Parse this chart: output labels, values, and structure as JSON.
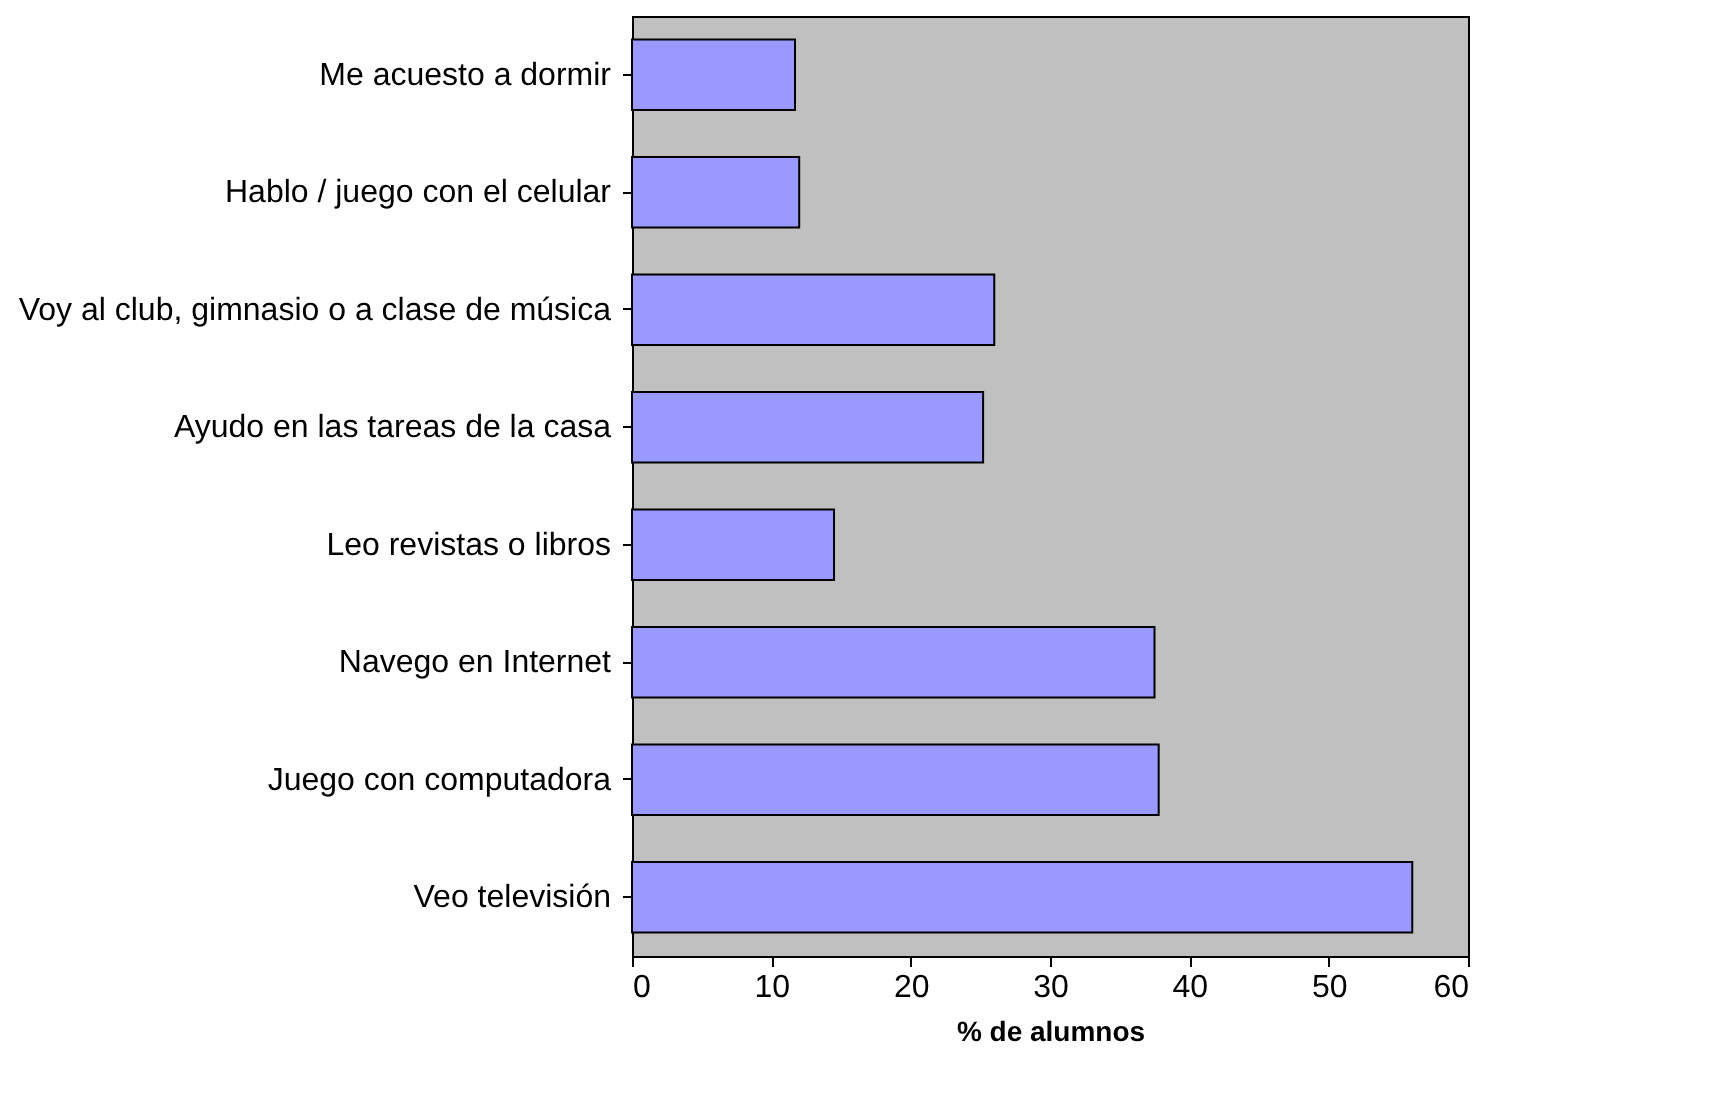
{
  "chart_data": {
    "type": "bar",
    "orientation": "horizontal",
    "categories": [
      "Me acuesto a dormir",
      "Hablo / juego con el celular",
      "Voy al club, gimnasio o a clase de música",
      "Ayudo en las tareas de la casa",
      "Leo revistas o libros",
      "Navego en Internet",
      "Juego con computadora",
      "Veo televisión"
    ],
    "values": [
      11.7,
      12,
      26,
      25.2,
      14.5,
      37.5,
      37.8,
      56
    ],
    "color": "#9999ff",
    "xlabel": "% de alumnos",
    "xlim": [
      0,
      60
    ],
    "xticks": [
      0,
      10,
      20,
      30,
      40,
      50,
      60
    ],
    "grid": false
  }
}
